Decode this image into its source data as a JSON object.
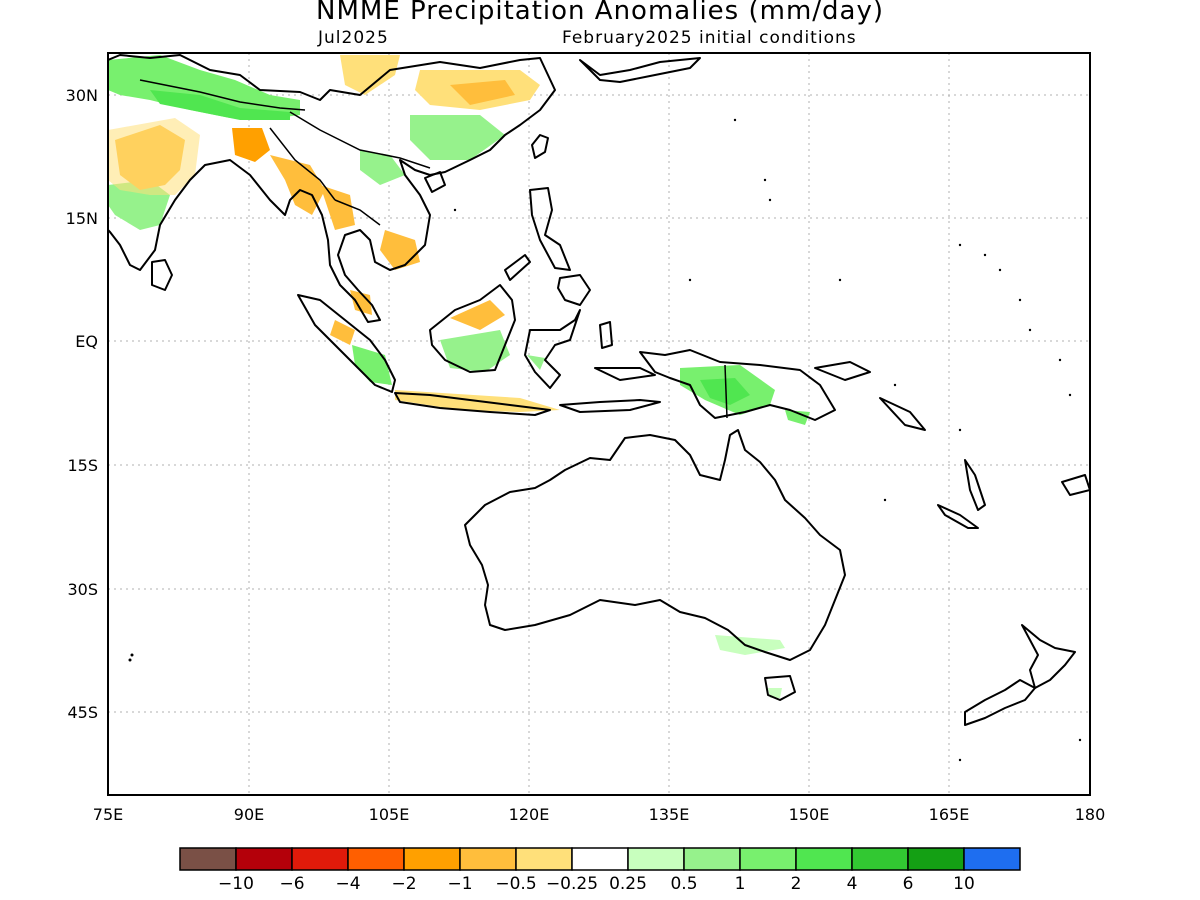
{
  "title": "NMME Precipitation Anomalies (mm/day)",
  "subtitle_left": "Jul2025",
  "subtitle_right": "February2025 initial conditions",
  "lat_ticks": [
    "30N",
    "15N",
    "EQ",
    "15S",
    "30S",
    "45S"
  ],
  "lon_ticks": [
    "75E",
    "90E",
    "105E",
    "120E",
    "135E",
    "150E",
    "165E",
    "180"
  ],
  "colorbar": {
    "colors": [
      "#7a5046",
      "#b4000a",
      "#e01a0a",
      "#ff5f00",
      "#ffa000",
      "#ffbe3c",
      "#ffe07a",
      "#ffffff",
      "#c8ffbe",
      "#96f28c",
      "#78f06e",
      "#50e650",
      "#32c832",
      "#14a014",
      "#1e6ef0"
    ],
    "labels": [
      "−10",
      "−6",
      "−4",
      "−2",
      "−1",
      "−0.5",
      "−0.25",
      "0.25",
      "0.5",
      "1",
      "2",
      "4",
      "6",
      "10"
    ]
  }
}
